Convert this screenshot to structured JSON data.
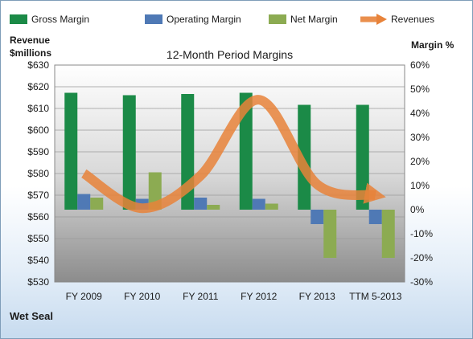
{
  "company": "Wet Seal",
  "chart_data": {
    "type": "bar",
    "title": "12-Month Period Margins",
    "left_axis_title": [
      "Revenue",
      "$millions"
    ],
    "right_axis_title": "Margin %",
    "categories": [
      "FY 2009",
      "FY 2010",
      "FY 2011",
      "FY 2012",
      "FY 2013",
      "TTM 5-2013"
    ],
    "left_axis": {
      "min": 530,
      "max": 630,
      "step": 10,
      "ticks": [
        "$530",
        "$540",
        "$550",
        "$560",
        "$570",
        "$580",
        "$590",
        "$600",
        "$610",
        "$620",
        "$630"
      ]
    },
    "right_axis": {
      "min": -30,
      "max": 60,
      "step": 10,
      "ticks": [
        "-30%",
        "-20%",
        "-10%",
        "0%",
        "10%",
        "20%",
        "30%",
        "40%",
        "50%",
        "60%"
      ]
    },
    "legend": {
      "position": "top",
      "items": [
        {
          "name": "Gross Margin",
          "color": "#1b8a47",
          "kind": "box"
        },
        {
          "name": "Operating Margin",
          "color": "#4f79b5",
          "kind": "box"
        },
        {
          "name": "Net Margin",
          "color": "#8cab52",
          "kind": "box"
        },
        {
          "name": "Revenues",
          "color": "#e8833a",
          "kind": "arrow"
        }
      ]
    },
    "series": [
      {
        "name": "Gross Margin",
        "axis": "right",
        "color": "#1b8a47",
        "values": [
          48.5,
          47.5,
          48,
          48.5,
          43.5,
          43.5
        ]
      },
      {
        "name": "Operating Margin",
        "axis": "right",
        "color": "#4f79b5",
        "values": [
          6.5,
          4.5,
          5,
          4.5,
          -6,
          -6
        ]
      },
      {
        "name": "Net Margin",
        "axis": "right",
        "color": "#8cab52",
        "values": [
          5,
          15.5,
          2,
          2.5,
          -20,
          -20
        ]
      },
      {
        "name": "Revenues",
        "axis": "left",
        "color": "#e8833a",
        "type": "line",
        "values": [
          580,
          564,
          579,
          614,
          575,
          570
        ]
      }
    ]
  }
}
